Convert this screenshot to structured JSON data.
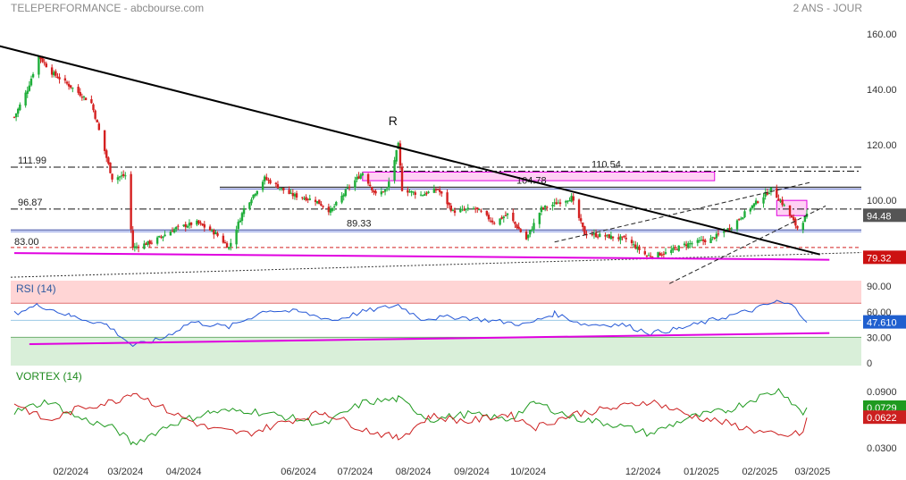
{
  "header": {
    "title": "TELEPERFORMANCE - abcbourse.com",
    "period": "2 ANS - JOUR"
  },
  "colors": {
    "up": "#1fae3a",
    "down": "#d42020",
    "trendline": "#000000",
    "support": "#e000e0",
    "rsi": "#2457d6",
    "vortex_plus": "#1f9a1f",
    "vortex_minus": "#cc1f1f",
    "overbought_zone": "#ffd5d5",
    "oversold_zone": "#d9efd9",
    "badge_price": "#555555",
    "badge_low": "#cc1111",
    "badge_rsi": "#1f5fcf"
  },
  "chart_data": [
    {
      "type": "candlestick",
      "title": "TELEPERFORMANCE",
      "x_range": [
        "2024-01-02",
        "2025-02-28"
      ],
      "x_labels": [
        "02/2024",
        "03/2024",
        "04/2024",
        "06/2024",
        "07/2024",
        "08/2024",
        "09/2024",
        "10/2024",
        "12/2024",
        "01/2025",
        "02/2025",
        "03/2025"
      ],
      "y_ticks": [
        "160.00",
        "140.00",
        "120.00",
        "100.00"
      ],
      "ylim": [
        77,
        163
      ],
      "close_series": [
        [
          "2024-01-02",
          130
        ],
        [
          "2024-01-09",
          140
        ],
        [
          "2024-01-15",
          152
        ],
        [
          "2024-01-22",
          146
        ],
        [
          "2024-02-01",
          141
        ],
        [
          "2024-02-12",
          135
        ],
        [
          "2024-02-23",
          108
        ],
        [
          "2024-03-01",
          109
        ],
        [
          "2024-03-05",
          83
        ],
        [
          "2024-03-15",
          85
        ],
        [
          "2024-03-28",
          90
        ],
        [
          "2024-04-08",
          92
        ],
        [
          "2024-04-18",
          88
        ],
        [
          "2024-04-25",
          83
        ],
        [
          "2024-05-03",
          97
        ],
        [
          "2024-05-14",
          108
        ],
        [
          "2024-05-28",
          102
        ],
        [
          "2024-06-10",
          100
        ],
        [
          "2024-06-18",
          96
        ],
        [
          "2024-06-28",
          105
        ],
        [
          "2024-07-05",
          110
        ],
        [
          "2024-07-12",
          102
        ],
        [
          "2024-07-18",
          104
        ],
        [
          "2024-07-24",
          120
        ],
        [
          "2024-07-26",
          104
        ],
        [
          "2024-08-05",
          102
        ],
        [
          "2024-08-14",
          104
        ],
        [
          "2024-08-22",
          96
        ],
        [
          "2024-09-03",
          97
        ],
        [
          "2024-09-13",
          92
        ],
        [
          "2024-09-20",
          95
        ],
        [
          "2024-09-30",
          86
        ],
        [
          "2024-10-08",
          97
        ],
        [
          "2024-10-24",
          101
        ],
        [
          "2024-10-31",
          88
        ],
        [
          "2024-11-12",
          87
        ],
        [
          "2024-11-22",
          86
        ],
        [
          "2024-12-03",
          80
        ],
        [
          "2024-12-13",
          81
        ],
        [
          "2024-12-23",
          84
        ],
        [
          "2025-01-06",
          86
        ],
        [
          "2025-01-16",
          90
        ],
        [
          "2025-01-28",
          98
        ],
        [
          "2025-02-07",
          104
        ],
        [
          "2025-02-14",
          98
        ],
        [
          "2025-02-21",
          90
        ],
        [
          "2025-02-26",
          94.48
        ]
      ],
      "levels": [
        {
          "label": "111.99",
          "value": 111.99
        },
        {
          "label": "110.54",
          "value": 110.54
        },
        {
          "label": "104.78",
          "value": 104.78
        },
        {
          "label": "96.87",
          "value": 96.87
        },
        {
          "label": "89.33",
          "value": 89.33
        },
        {
          "label": "83.00",
          "value": 83.0
        }
      ],
      "annotations": [
        {
          "text": "R",
          "date": "2024-07-24",
          "value": 120
        }
      ],
      "trendline": [
        [
          "2023-12-20",
          156.5
        ],
        [
          "2025-03-05",
          80.5
        ]
      ],
      "support_line": [
        [
          "2024-01-02",
          81
        ],
        [
          "2025-03-10",
          78.6
        ]
      ],
      "dotted_line": [
        [
          "2024-01-02",
          72.3
        ],
        [
          "2025-03-10",
          81.2
        ]
      ],
      "channel": [
        [
          [
            "2024-10-15",
            85
          ],
          [
            "2025-02-28",
            106.5
          ]
        ],
        [
          [
            "2024-12-15",
            70
          ],
          [
            "2025-03-08",
            98
          ]
        ]
      ],
      "zones": [
        {
          "from": "2024-07-05",
          "to": "2025-01-08",
          "low": 107.1,
          "high": 110.2
        },
        {
          "from": "2025-02-10",
          "to": "2025-02-26",
          "low": 94.5,
          "high": 100
        }
      ],
      "current": {
        "label": "94.48",
        "value": 94.48
      },
      "low_marker": {
        "label": "79.32",
        "value": 79.32
      }
    },
    {
      "type": "line",
      "title": "RSI (14)",
      "y_ticks": [
        "90.00",
        "60.00",
        "30.00",
        "0"
      ],
      "ylim": [
        0,
        100
      ],
      "overbought": 70,
      "oversold": 30,
      "series": [
        [
          "2024-01-02",
          58
        ],
        [
          "2024-01-15",
          68
        ],
        [
          "2024-02-01",
          55
        ],
        [
          "2024-02-20",
          45
        ],
        [
          "2024-03-05",
          20
        ],
        [
          "2024-03-20",
          28
        ],
        [
          "2024-04-05",
          48
        ],
        [
          "2024-04-25",
          42
        ],
        [
          "2024-05-15",
          62
        ],
        [
          "2024-06-01",
          60
        ],
        [
          "2024-06-20",
          50
        ],
        [
          "2024-07-05",
          60
        ],
        [
          "2024-07-24",
          68
        ],
        [
          "2024-08-05",
          52
        ],
        [
          "2024-08-25",
          54
        ],
        [
          "2024-09-10",
          50
        ],
        [
          "2024-09-30",
          45
        ],
        [
          "2024-10-15",
          58
        ],
        [
          "2024-10-31",
          45
        ],
        [
          "2024-11-20",
          45
        ],
        [
          "2024-12-05",
          35
        ],
        [
          "2024-12-20",
          40
        ],
        [
          "2025-01-10",
          52
        ],
        [
          "2025-01-28",
          62
        ],
        [
          "2025-02-10",
          72
        ],
        [
          "2025-02-20",
          66
        ],
        [
          "2025-02-26",
          47.61
        ]
      ],
      "support_line": [
        [
          "2024-01-10",
          22
        ],
        [
          "2025-03-10",
          35
        ]
      ],
      "current": {
        "label": "47.610",
        "value": 47.61
      }
    },
    {
      "type": "line",
      "title": "VORTEX (14)",
      "y_ticks": [
        "0.0900",
        "0.0300"
      ],
      "ylim": [
        0.027,
        0.103
      ],
      "series": [
        {
          "color": "vortex_plus",
          "points": [
            [
              "2024-01-02",
              0.068
            ],
            [
              "2024-01-20",
              0.08
            ],
            [
              "2024-02-05",
              0.062
            ],
            [
              "2024-02-25",
              0.05
            ],
            [
              "2024-03-05",
              0.034
            ],
            [
              "2024-03-25",
              0.055
            ],
            [
              "2024-04-15",
              0.068
            ],
            [
              "2024-05-05",
              0.07
            ],
            [
              "2024-05-25",
              0.063
            ],
            [
              "2024-06-15",
              0.055
            ],
            [
              "2024-07-05",
              0.078
            ],
            [
              "2024-07-24",
              0.082
            ],
            [
              "2024-08-10",
              0.06
            ],
            [
              "2024-08-30",
              0.066
            ],
            [
              "2024-09-20",
              0.06
            ],
            [
              "2024-10-05",
              0.078
            ],
            [
              "2024-10-25",
              0.062
            ],
            [
              "2024-11-15",
              0.055
            ],
            [
              "2024-12-05",
              0.045
            ],
            [
              "2024-12-25",
              0.062
            ],
            [
              "2025-01-15",
              0.07
            ],
            [
              "2025-01-30",
              0.083
            ],
            [
              "2025-02-12",
              0.092
            ],
            [
              "2025-02-24",
              0.066
            ],
            [
              "2025-02-26",
              0.0729
            ]
          ]
        },
        {
          "color": "vortex_minus",
          "points": [
            [
              "2024-01-02",
              0.078
            ],
            [
              "2024-01-20",
              0.058
            ],
            [
              "2024-02-05",
              0.072
            ],
            [
              "2024-02-25",
              0.08
            ],
            [
              "2024-03-05",
              0.09
            ],
            [
              "2024-03-25",
              0.068
            ],
            [
              "2024-04-15",
              0.05
            ],
            [
              "2024-05-05",
              0.045
            ],
            [
              "2024-05-25",
              0.058
            ],
            [
              "2024-06-15",
              0.068
            ],
            [
              "2024-07-05",
              0.05
            ],
            [
              "2024-07-24",
              0.04
            ],
            [
              "2024-08-10",
              0.064
            ],
            [
              "2024-08-30",
              0.058
            ],
            [
              "2024-09-20",
              0.066
            ],
            [
              "2024-10-05",
              0.052
            ],
            [
              "2024-10-25",
              0.066
            ],
            [
              "2024-11-15",
              0.072
            ],
            [
              "2024-12-05",
              0.08
            ],
            [
              "2024-12-25",
              0.065
            ],
            [
              "2025-01-15",
              0.056
            ],
            [
              "2025-01-30",
              0.048
            ],
            [
              "2025-02-12",
              0.042
            ],
            [
              "2025-02-24",
              0.046
            ],
            [
              "2025-02-26",
              0.0622
            ]
          ]
        }
      ],
      "current_plus": {
        "label": "0.0729",
        "value": 0.0729
      },
      "current_minus": {
        "label": "0.0622",
        "value": 0.0622
      }
    }
  ]
}
